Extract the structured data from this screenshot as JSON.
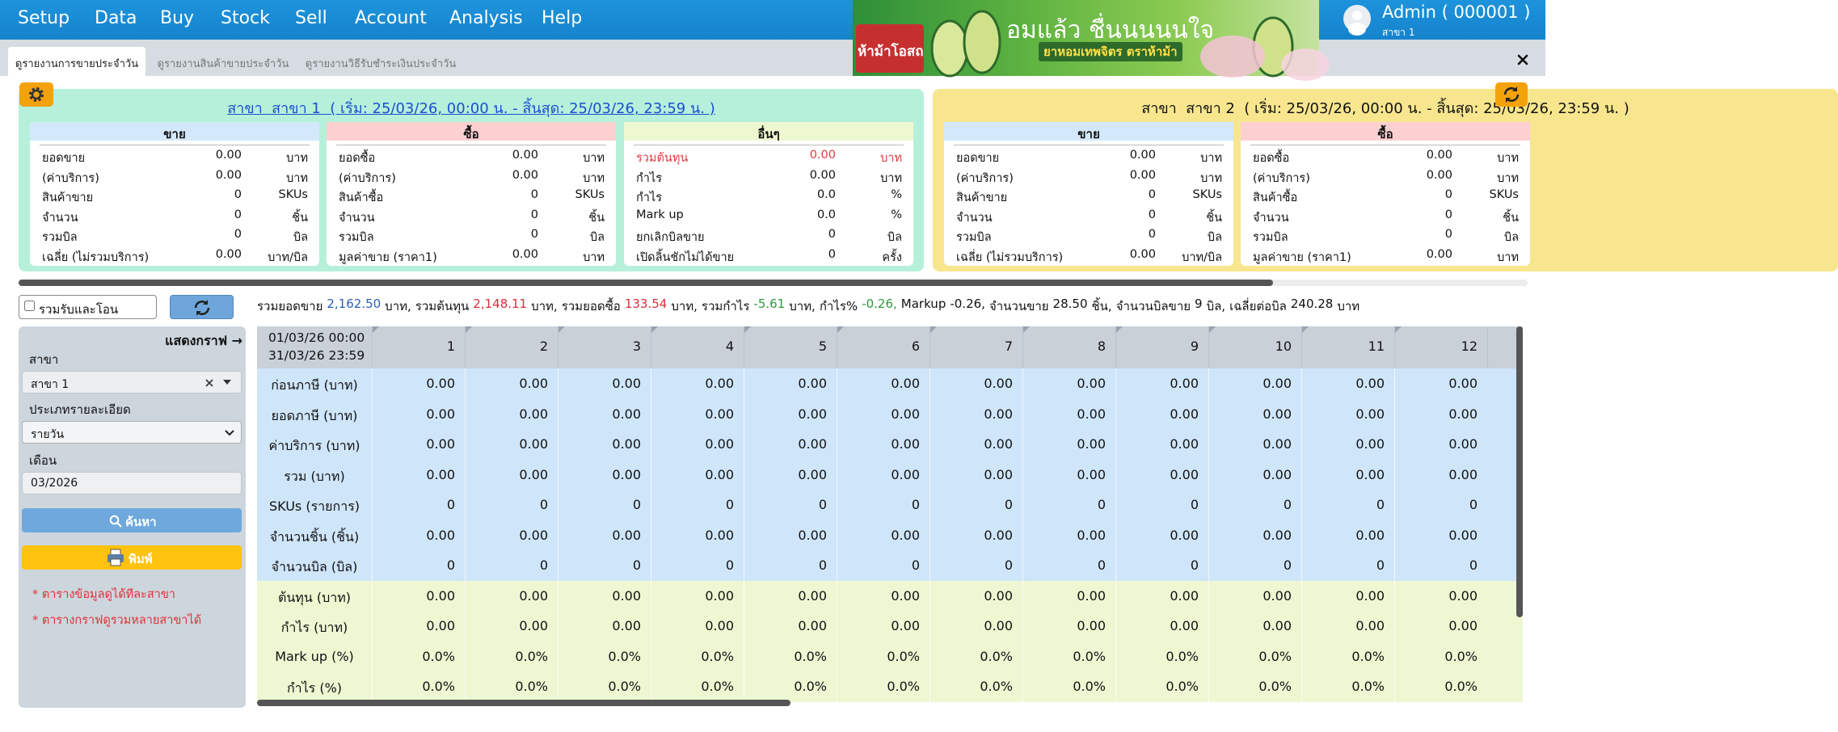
{
  "nav": {
    "menu": [
      "Setup",
      "Data",
      "Buy",
      "Stock",
      "Sell",
      "Account",
      "Analysis",
      "Help"
    ],
    "banner": {
      "brand": "ห้าม้าโอสถ",
      "headline": "อมแล้ว ชื่นนนนนใจ",
      "tagline": "ยาหอมเทพจิตร ตราห้าม้า"
    },
    "user": {
      "name": "Admin ( 000001 )",
      "branch": "สาขา 1"
    }
  },
  "tabs": [
    "ดูรายงานการขายประจำวัน",
    "ดูรายงานสินค้าขายประจำวัน",
    "ดูรายงานวิธีรับชำระเงินประจำวัน"
  ],
  "branches": [
    {
      "title": "สาขา  สาขา 1  ( เริ่ม: 25/03/26, 00:00 น. - สิ้นสุด: 25/03/26, 23:59 น. )",
      "color": "#b6f0da",
      "panels": [
        {
          "heading": "ขาย",
          "color": "#d3e9fb",
          "rows": [
            {
              "label": "ยอดขาย",
              "value": "0.00",
              "unit": "บาท"
            },
            {
              "label": "(ค่าบริการ)",
              "value": "0.00",
              "unit": "บาท"
            },
            {
              "label": "สินค้าขาย",
              "value": "0",
              "unit": "SKUs"
            },
            {
              "label": "จำนวน",
              "value": "0",
              "unit": "ชิ้น"
            },
            {
              "label": "รวมบิล",
              "value": "0",
              "unit": "บิล"
            },
            {
              "label": "เฉลี่ย (ไม่รวมบริการ)",
              "value": "0.00",
              "unit": "บาท/บิล"
            }
          ]
        },
        {
          "heading": "ซื้อ",
          "color": "#fcd0d1",
          "rows": [
            {
              "label": "ยอดซื้อ",
              "value": "0.00",
              "unit": "บาท"
            },
            {
              "label": "(ค่าบริการ)",
              "value": "0.00",
              "unit": "บาท"
            },
            {
              "label": "สินค้าซื้อ",
              "value": "0",
              "unit": "SKUs"
            },
            {
              "label": "จำนวน",
              "value": "0",
              "unit": "ชิ้น"
            },
            {
              "label": "รวมบิล",
              "value": "0",
              "unit": "บิล"
            },
            {
              "label": "มูลค่าขาย (ราคา1)",
              "value": "0.00",
              "unit": "บาท"
            }
          ]
        },
        {
          "heading": "อื่นๆ",
          "color": "#eef8d0",
          "rows": [
            {
              "label": "รวมต้นทุน",
              "value": "0.00",
              "unit": "บาท",
              "color": "#e03a3e"
            },
            {
              "label": "กำไร",
              "value": "0.00",
              "unit": "บาท"
            },
            {
              "label": "กำไร",
              "value": "0.0",
              "unit": "%"
            },
            {
              "label": "Mark up",
              "value": "0.0",
              "unit": "%"
            },
            {
              "label": "ยกเลิกบิลขาย",
              "value": "0",
              "unit": "บิล"
            },
            {
              "label": "เปิดลิ้นชักไม่ได้ขาย",
              "value": "0",
              "unit": "ครั้ง"
            }
          ]
        }
      ]
    },
    {
      "title": "สาขา  สาขา 2  ( เริ่ม: 25/03/26, 00:00 น. - สิ้นสุด: 25/03/26, 23:59 น. )",
      "color": "#f8e68e",
      "panels": [
        {
          "heading": "ขาย",
          "color": "#d3e9fb",
          "rows": [
            {
              "label": "ยอดขาย",
              "value": "0.00",
              "unit": "บาท"
            },
            {
              "label": "(ค่าบริการ)",
              "value": "0.00",
              "unit": "บาท"
            },
            {
              "label": "สินค้าขาย",
              "value": "0",
              "unit": "SKUs"
            },
            {
              "label": "จำนวน",
              "value": "0",
              "unit": "ชิ้น"
            },
            {
              "label": "รวมบิล",
              "value": "0",
              "unit": "บิล"
            },
            {
              "label": "เฉลี่ย (ไม่รวมบริการ)",
              "value": "0.00",
              "unit": "บาท/บิล"
            }
          ]
        },
        {
          "heading": "ซื้อ",
          "color": "#fcd0d1",
          "rows": [
            {
              "label": "ยอดซื้อ",
              "value": "0.00",
              "unit": "บาท"
            },
            {
              "label": "(ค่าบริการ)",
              "value": "0.00",
              "unit": "บาท"
            },
            {
              "label": "สินค้าซื้อ",
              "value": "0",
              "unit": "SKUs"
            },
            {
              "label": "จำนวน",
              "value": "0",
              "unit": "ชิ้น"
            },
            {
              "label": "รวมบิล",
              "value": "0",
              "unit": "บิล"
            },
            {
              "label": "มูลค่าขาย (ราคา1)",
              "value": "0.00",
              "unit": "บาท"
            }
          ]
        }
      ]
    }
  ],
  "sidebar": {
    "checkbox": "รวมรับและโอน",
    "show_graph": "แสดงกราฟ →",
    "fields": [
      {
        "label": "สาขา",
        "value": "สาขา 1"
      },
      {
        "label": "ประเภทรายละเอียด",
        "value": "รายวัน"
      },
      {
        "label": "เดือน",
        "value": "03/2026"
      }
    ],
    "search": "ค้นหา",
    "print": "พิมพ์",
    "notes": [
      "* ตารางข้อมูลดูได้ทีละสาขา",
      "* ตารางกราฟดูรวมหลายสาขาได้"
    ]
  },
  "summary": [
    {
      "label": "รวมยอดขาย",
      "value": "2,162.50",
      "unit": "บาท,",
      "color": "#2b5fb4"
    },
    {
      "label": "รวมต้นทุน",
      "value": "2,148.11",
      "unit": "บาท,",
      "color": "#d9303a"
    },
    {
      "label": "รวมยอดซื้อ",
      "value": "133.54",
      "unit": "บาท,",
      "color": "#d9303a"
    },
    {
      "label": "รวมกำไร",
      "value": "-5.61",
      "unit": "บาท,",
      "color": "#2e9a3a"
    },
    {
      "label": "กำไร%",
      "value": "-0.26,",
      "color": "#2e9a3a"
    },
    {
      "label": "Markup",
      "value": "-0.26,",
      "color": "#111111"
    },
    {
      "label": "จำนวนขาย",
      "value": "28.50",
      "unit": "ชิ้น,",
      "color": "#111111"
    },
    {
      "label": "จำนวนบิลขาย",
      "value": "9",
      "unit": "บิล,",
      "color": "#111111"
    },
    {
      "label": "เฉลี่ยต่อบิล",
      "value": "240.28",
      "unit": "บาท",
      "color": "#111111"
    }
  ],
  "table": {
    "period": [
      "01/03/26 00:00",
      "31/03/26 23:59"
    ],
    "columns": [
      "1",
      "2",
      "3",
      "4",
      "5",
      "6",
      "7",
      "8",
      "9",
      "10",
      "11",
      "12"
    ],
    "groups": [
      {
        "color": "#cfe5fa",
        "rows": [
          {
            "label": "ก่อนภาษี (บาท)",
            "cells": [
              "0.00",
              "0.00",
              "0.00",
              "0.00",
              "0.00",
              "0.00",
              "0.00",
              "0.00",
              "0.00",
              "0.00",
              "0.00",
              "0.00"
            ]
          },
          {
            "label": "ยอดภาษี (บาท)",
            "cells": [
              "0.00",
              "0.00",
              "0.00",
              "0.00",
              "0.00",
              "0.00",
              "0.00",
              "0.00",
              "0.00",
              "0.00",
              "0.00",
              "0.00"
            ]
          },
          {
            "label": "ค่าบริการ (บาท)",
            "cells": [
              "0.00",
              "0.00",
              "0.00",
              "0.00",
              "0.00",
              "0.00",
              "0.00",
              "0.00",
              "0.00",
              "0.00",
              "0.00",
              "0.00"
            ]
          },
          {
            "label": "รวม (บาท)",
            "cells": [
              "0.00",
              "0.00",
              "0.00",
              "0.00",
              "0.00",
              "0.00",
              "0.00",
              "0.00",
              "0.00",
              "0.00",
              "0.00",
              "0.00"
            ]
          },
          {
            "label": "SKUs (รายการ)",
            "cells": [
              "0",
              "0",
              "0",
              "0",
              "0",
              "0",
              "0",
              "0",
              "0",
              "0",
              "0",
              "0"
            ]
          },
          {
            "label": "จำนวนชิ้น (ชิ้น)",
            "cells": [
              "0.00",
              "0.00",
              "0.00",
              "0.00",
              "0.00",
              "0.00",
              "0.00",
              "0.00",
              "0.00",
              "0.00",
              "0.00",
              "0.00"
            ]
          },
          {
            "label": "จำนวนบิล (บิล)",
            "cells": [
              "0",
              "0",
              "0",
              "0",
              "0",
              "0",
              "0",
              "0",
              "0",
              "0",
              "0",
              "0"
            ]
          }
        ]
      },
      {
        "color": "#edf7d2",
        "rows": [
          {
            "label": "ต้นทุน (บาท)",
            "cells": [
              "0.00",
              "0.00",
              "0.00",
              "0.00",
              "0.00",
              "0.00",
              "0.00",
              "0.00",
              "0.00",
              "0.00",
              "0.00",
              "0.00"
            ]
          },
          {
            "label": "กำไร (บาท)",
            "cells": [
              "0.00",
              "0.00",
              "0.00",
              "0.00",
              "0.00",
              "0.00",
              "0.00",
              "0.00",
              "0.00",
              "0.00",
              "0.00",
              "0.00"
            ]
          },
          {
            "label": "Mark up (%)",
            "cells": [
              "0.0%",
              "0.0%",
              "0.0%",
              "0.0%",
              "0.0%",
              "0.0%",
              "0.0%",
              "0.0%",
              "0.0%",
              "0.0%",
              "0.0%",
              "0.0%"
            ]
          },
          {
            "label": "กำไร (%)",
            "cells": [
              "0.0%",
              "0.0%",
              "0.0%",
              "0.0%",
              "0.0%",
              "0.0%",
              "0.0%",
              "0.0%",
              "0.0%",
              "0.0%",
              "0.0%",
              "0.0%"
            ]
          }
        ]
      }
    ]
  }
}
